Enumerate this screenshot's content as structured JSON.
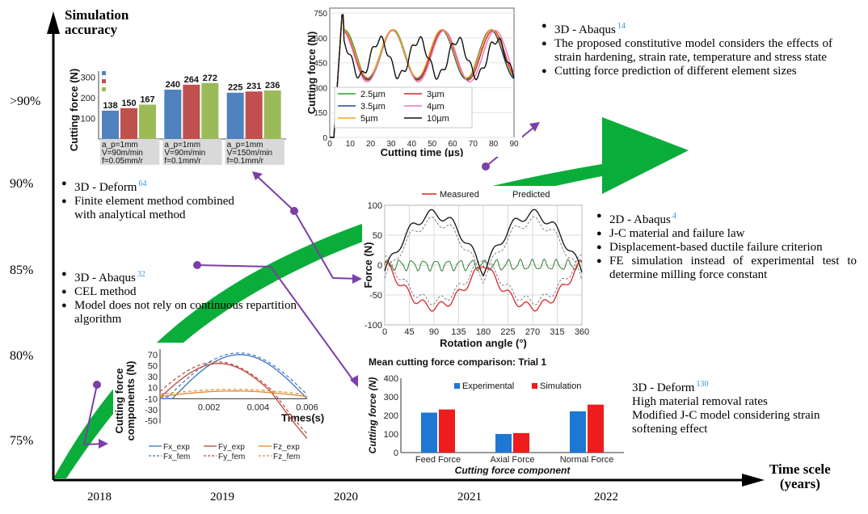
{
  "axes": {
    "y_title_line1": "Simulation",
    "y_title_line2": "accuracy",
    "x_title_line1": "Time scele",
    "x_title_line2": "(years)",
    "y_levels": [
      ">90%",
      "90%",
      "85%",
      "80%",
      "75%"
    ],
    "years": [
      "2018",
      "2019",
      "2020",
      "2021",
      "2022"
    ]
  },
  "colors": {
    "arrow": "#0aad3a",
    "connector": "#7b3fa8",
    "ref": "#2f9ad8"
  },
  "studies": [
    {
      "title": "3D - Deform",
      "ref": "64",
      "points": [
        "Finite element method combined with analytical method"
      ]
    },
    {
      "title": "3D - Abaqus",
      "ref": "32",
      "points": [
        "CEL method",
        "Model does not rely on continuous repartition algorithm"
      ]
    },
    {
      "title": "3D - Abaqus",
      "ref": "14",
      "points": [
        "The proposed constitutive model considers the effects of strain hardening, strain rate, temperature and stress state",
        "Cutting force prediction of different element sizes"
      ]
    },
    {
      "title": "2D - Abaqus",
      "ref": "4",
      "points": [
        "J-C material and failure law",
        "Displacement-based ductile failure criterion",
        "FE simulation instead of experimental test to determine milling force constant"
      ]
    },
    {
      "title": "3D - Deform",
      "ref": "130",
      "points": [
        "High material removal rates",
        "Modified J-C model considering strain softening effect"
      ]
    }
  ],
  "chart_data": [
    {
      "type": "bar",
      "ylabel": "Cutting force (N)",
      "yticks": [
        "100",
        "200",
        "300"
      ],
      "groups": [
        {
          "values": [
            138,
            150,
            167
          ],
          "labels": [
            "138",
            "150",
            "167"
          ],
          "cond": [
            "a_p=1mm",
            "V=90m/min",
            "f=0.05mm/r"
          ]
        },
        {
          "values": [
            240,
            264,
            272
          ],
          "labels": [
            "240",
            "264",
            "272"
          ],
          "cond": [
            "a_p=1mm",
            "V=90m/min",
            "f=0.1mm/r"
          ]
        },
        {
          "values": [
            225,
            231,
            236
          ],
          "labels": [
            "225",
            "231",
            "236"
          ],
          "cond": [
            "a_p=1mm",
            "V=150m/min",
            "f=0.1mm/r"
          ]
        }
      ],
      "series_colors": [
        "#4f81bd",
        "#c0504d",
        "#9bbb59"
      ]
    },
    {
      "type": "line",
      "xlabel": "Cutting time (µs)",
      "ylabel": "Cutting force (N)",
      "xticks": [
        "0",
        "10",
        "20",
        "30",
        "40",
        "50",
        "60",
        "70",
        "80",
        "90"
      ],
      "yticks": [
        "750",
        "600",
        "450",
        "300",
        "150",
        "0"
      ],
      "legend": [
        {
          "name": "2.5µm",
          "color": "#2ca02c"
        },
        {
          "name": "3µm",
          "color": "#d62728"
        },
        {
          "name": "3.5µm",
          "color": "#1b4f8c"
        },
        {
          "name": "4µm",
          "color": "#e377c2"
        },
        {
          "name": "5µm",
          "color": "#ff9f1c"
        },
        {
          "name": "10µm",
          "color": "#111111"
        }
      ]
    },
    {
      "type": "line",
      "xlabel": "Rotation angle (°)",
      "ylabel": "Force (N)",
      "xticks": [
        "0",
        "45",
        "90",
        "135",
        "180",
        "225",
        "270",
        "315",
        "360"
      ],
      "yticks": [
        "100",
        "50",
        "0",
        "-50",
        "-100"
      ],
      "legend": [
        {
          "name": "Measured",
          "color": "#d62728"
        },
        {
          "name": "Predicted",
          "color": "#111111"
        }
      ]
    },
    {
      "type": "line",
      "xlabel": "Times(s)",
      "ylabel": "Cutting force components (N)",
      "xticks": [
        "0.002",
        "0.004",
        "0.006"
      ],
      "yticks": [
        "70",
        "50",
        "30",
        "10",
        "-10",
        "-30",
        "-50"
      ],
      "legend": [
        {
          "name": "Fx_exp",
          "color": "#3a75c4"
        },
        {
          "name": "Fy_exp",
          "color": "#b9473a"
        },
        {
          "name": "Fz_exp",
          "color": "#e3872d"
        },
        {
          "name": "Fx_fem",
          "color": "#3a75c4"
        },
        {
          "name": "Fy_fem",
          "color": "#b9473a"
        },
        {
          "name": "Fz_fem",
          "color": "#e3872d"
        }
      ]
    },
    {
      "type": "bar",
      "title": "Mean cutting force comparison: Trial 1",
      "xlabel": "Cutting force component",
      "ylabel": "Cutting force (N)",
      "categories": [
        "Feed Force",
        "Axial Force",
        "Normal Force"
      ],
      "yticks": [
        "400",
        "300",
        "200",
        "100",
        "0"
      ],
      "ylim": [
        0,
        400
      ],
      "series": [
        {
          "name": "Experimental",
          "values": [
            215,
            100,
            222
          ],
          "color": "#1f77d4"
        },
        {
          "name": "Simulation",
          "values": [
            232,
            105,
            258
          ],
          "color": "#ee1c1c"
        }
      ]
    }
  ]
}
